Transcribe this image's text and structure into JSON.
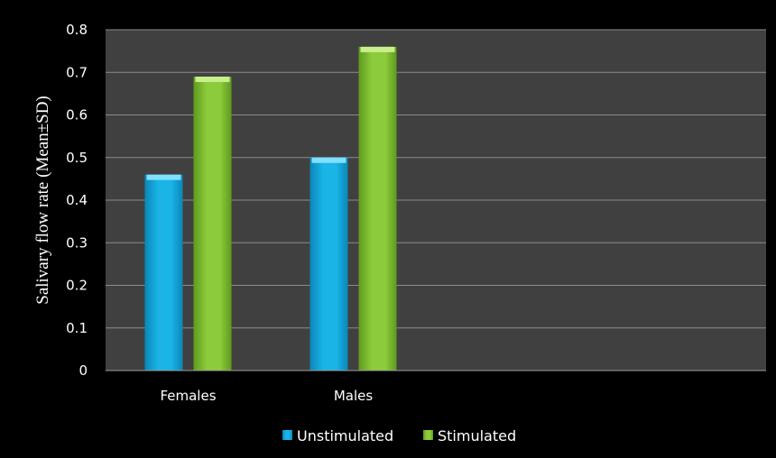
{
  "chart_data": {
    "type": "bar",
    "title": "",
    "xlabel": "",
    "ylabel": "Salivary  flow rate (Mean±SD)",
    "categories": [
      "Females",
      "Males",
      "",
      ""
    ],
    "series": [
      {
        "name": "Unstimulated",
        "values": [
          0.46,
          0.5,
          null,
          null
        ],
        "color": "#1ab4e6",
        "color_dark": "#0b86b8",
        "color_light": "#7fe0ff"
      },
      {
        "name": "Stimulated",
        "values": [
          0.69,
          0.76,
          null,
          null
        ],
        "color": "#8ccc3c",
        "color_dark": "#5f9a1e",
        "color_light": "#c8ef8a"
      }
    ],
    "ylim": [
      0,
      0.8
    ],
    "yticks": [
      "0",
      "0.1",
      "0.2",
      "0.3",
      "0.4",
      "0.5",
      "0.6",
      "0.7",
      "0.8"
    ],
    "grid": true,
    "legend_position": "bottom",
    "plot_background": "#404040",
    "grid_color": "#8c8c8c"
  }
}
